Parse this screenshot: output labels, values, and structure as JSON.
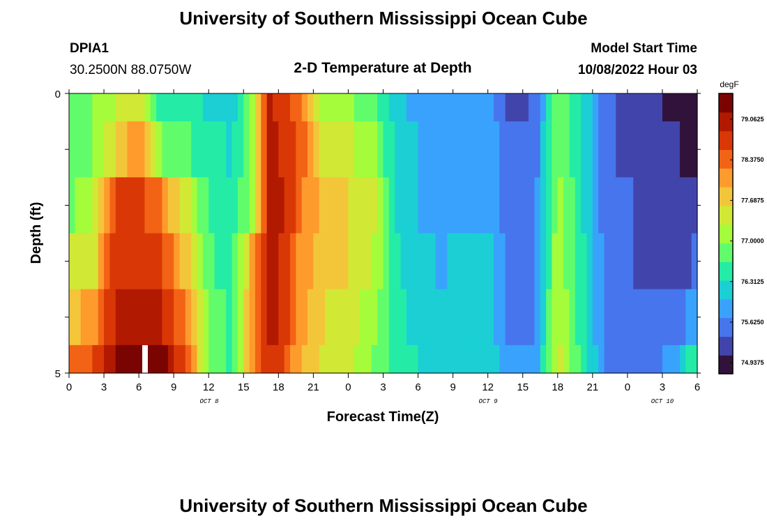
{
  "header": {
    "title": "University of Southern Mississippi Ocean Cube",
    "station": "DPIA1",
    "coords": "30.2500N  88.0750W",
    "subtitle": "2-D Temperature at Depth",
    "model_label": "Model Start Time",
    "model_time": "10/08/2022 Hour 03"
  },
  "footer": {
    "title": "University of Southern Mississippi Ocean Cube"
  },
  "chart_data": {
    "type": "heatmap",
    "xlabel": "Forecast Time(Z)",
    "ylabel": "Depth (ft)",
    "x_hours_range": [
      0,
      54
    ],
    "x_ticks": [
      "0",
      "3",
      "6",
      "9",
      "12",
      "15",
      "18",
      "21",
      "0",
      "3",
      "6",
      "9",
      "12",
      "15",
      "18",
      "21",
      "0",
      "3",
      "6"
    ],
    "date_labels": [
      "OCT 8",
      "OCT 9",
      "OCT 10"
    ],
    "y_ticks": [
      "0",
      "5"
    ],
    "y_range": [
      0,
      5
    ],
    "colorbar": {
      "unit": "degF",
      "range": [
        74.75,
        79.5
      ],
      "ticks": [
        "79.0625",
        "78.3750",
        "77.6875",
        "77.0000",
        "76.3125",
        "75.6250",
        "74.9375"
      ],
      "colors": [
        "#30123b",
        "#4145ab",
        "#4675ed",
        "#39a2fc",
        "#1bcfd4",
        "#24eca6",
        "#61fc6c",
        "#a4fc3b",
        "#d1e834",
        "#f3c63a",
        "#fe9b2d",
        "#f36315",
        "#d93806",
        "#b11901",
        "#7a0402"
      ]
    },
    "depth_layers": [
      "0-0.5 ft",
      "0.5-1.5 ft",
      "1.5-2.5 ft",
      "2.5-3.5 ft",
      "3.5-4.5 ft",
      "4.5-5 ft"
    ],
    "profile_keys": {
      "hours": [
        0,
        2,
        4,
        6,
        8,
        10,
        12,
        14,
        16,
        17,
        18,
        20,
        22,
        24,
        26,
        28,
        30,
        32,
        34,
        36,
        38,
        40,
        42,
        44,
        46,
        48,
        50,
        52,
        54
      ],
      "layers_degF": [
        [
          76.7,
          77.0,
          77.3,
          77.6,
          76.5,
          76.5,
          76.3,
          76.2,
          77.2,
          78.9,
          78.8,
          78.2,
          77.1,
          77.0,
          76.9,
          76.2,
          75.9,
          75.8,
          75.8,
          75.8,
          75.3,
          75.4,
          76.9,
          76.4,
          75.5,
          75.3,
          75.2,
          74.9,
          74.75
        ],
        [
          76.9,
          76.9,
          77.6,
          78.3,
          77.0,
          76.7,
          76.5,
          76.3,
          77.2,
          78.9,
          78.9,
          78.4,
          77.4,
          77.3,
          77.2,
          76.3,
          76.0,
          75.9,
          75.9,
          75.9,
          75.4,
          75.5,
          77.0,
          76.4,
          75.5,
          75.3,
          75.2,
          75.1,
          74.9
        ],
        [
          76.9,
          77.1,
          78.6,
          78.7,
          78.2,
          77.4,
          76.6,
          76.4,
          77.2,
          79.0,
          79.0,
          78.3,
          77.7,
          77.6,
          77.5,
          76.3,
          76.0,
          76.0,
          76.0,
          76.0,
          75.5,
          75.6,
          77.1,
          76.4,
          75.5,
          75.4,
          75.3,
          75.2,
          75.1
        ],
        [
          77.3,
          77.4,
          78.8,
          78.8,
          78.6,
          77.8,
          76.7,
          76.5,
          78.2,
          79.0,
          78.9,
          78.0,
          77.8,
          77.6,
          77.4,
          76.4,
          76.1,
          76.0,
          76.1,
          76.1,
          75.5,
          75.6,
          77.2,
          76.5,
          75.6,
          75.4,
          75.3,
          75.3,
          75.4
        ],
        [
          77.8,
          78.0,
          78.9,
          79.2,
          78.9,
          78.3,
          76.8,
          76.6,
          78.3,
          79.0,
          78.9,
          78.0,
          77.6,
          77.5,
          77.1,
          76.5,
          76.2,
          76.1,
          76.1,
          76.2,
          75.6,
          75.7,
          77.3,
          76.5,
          75.6,
          75.5,
          75.4,
          75.5,
          75.9
        ],
        [
          78.2,
          78.6,
          79.2,
          79.4,
          79.3,
          78.6,
          77.0,
          76.6,
          78.4,
          78.9,
          78.7,
          77.9,
          77.5,
          77.4,
          77.0,
          76.6,
          76.3,
          76.2,
          76.2,
          76.3,
          75.7,
          75.8,
          77.4,
          76.6,
          75.7,
          75.6,
          75.5,
          75.9,
          76.6
        ]
      ]
    }
  }
}
